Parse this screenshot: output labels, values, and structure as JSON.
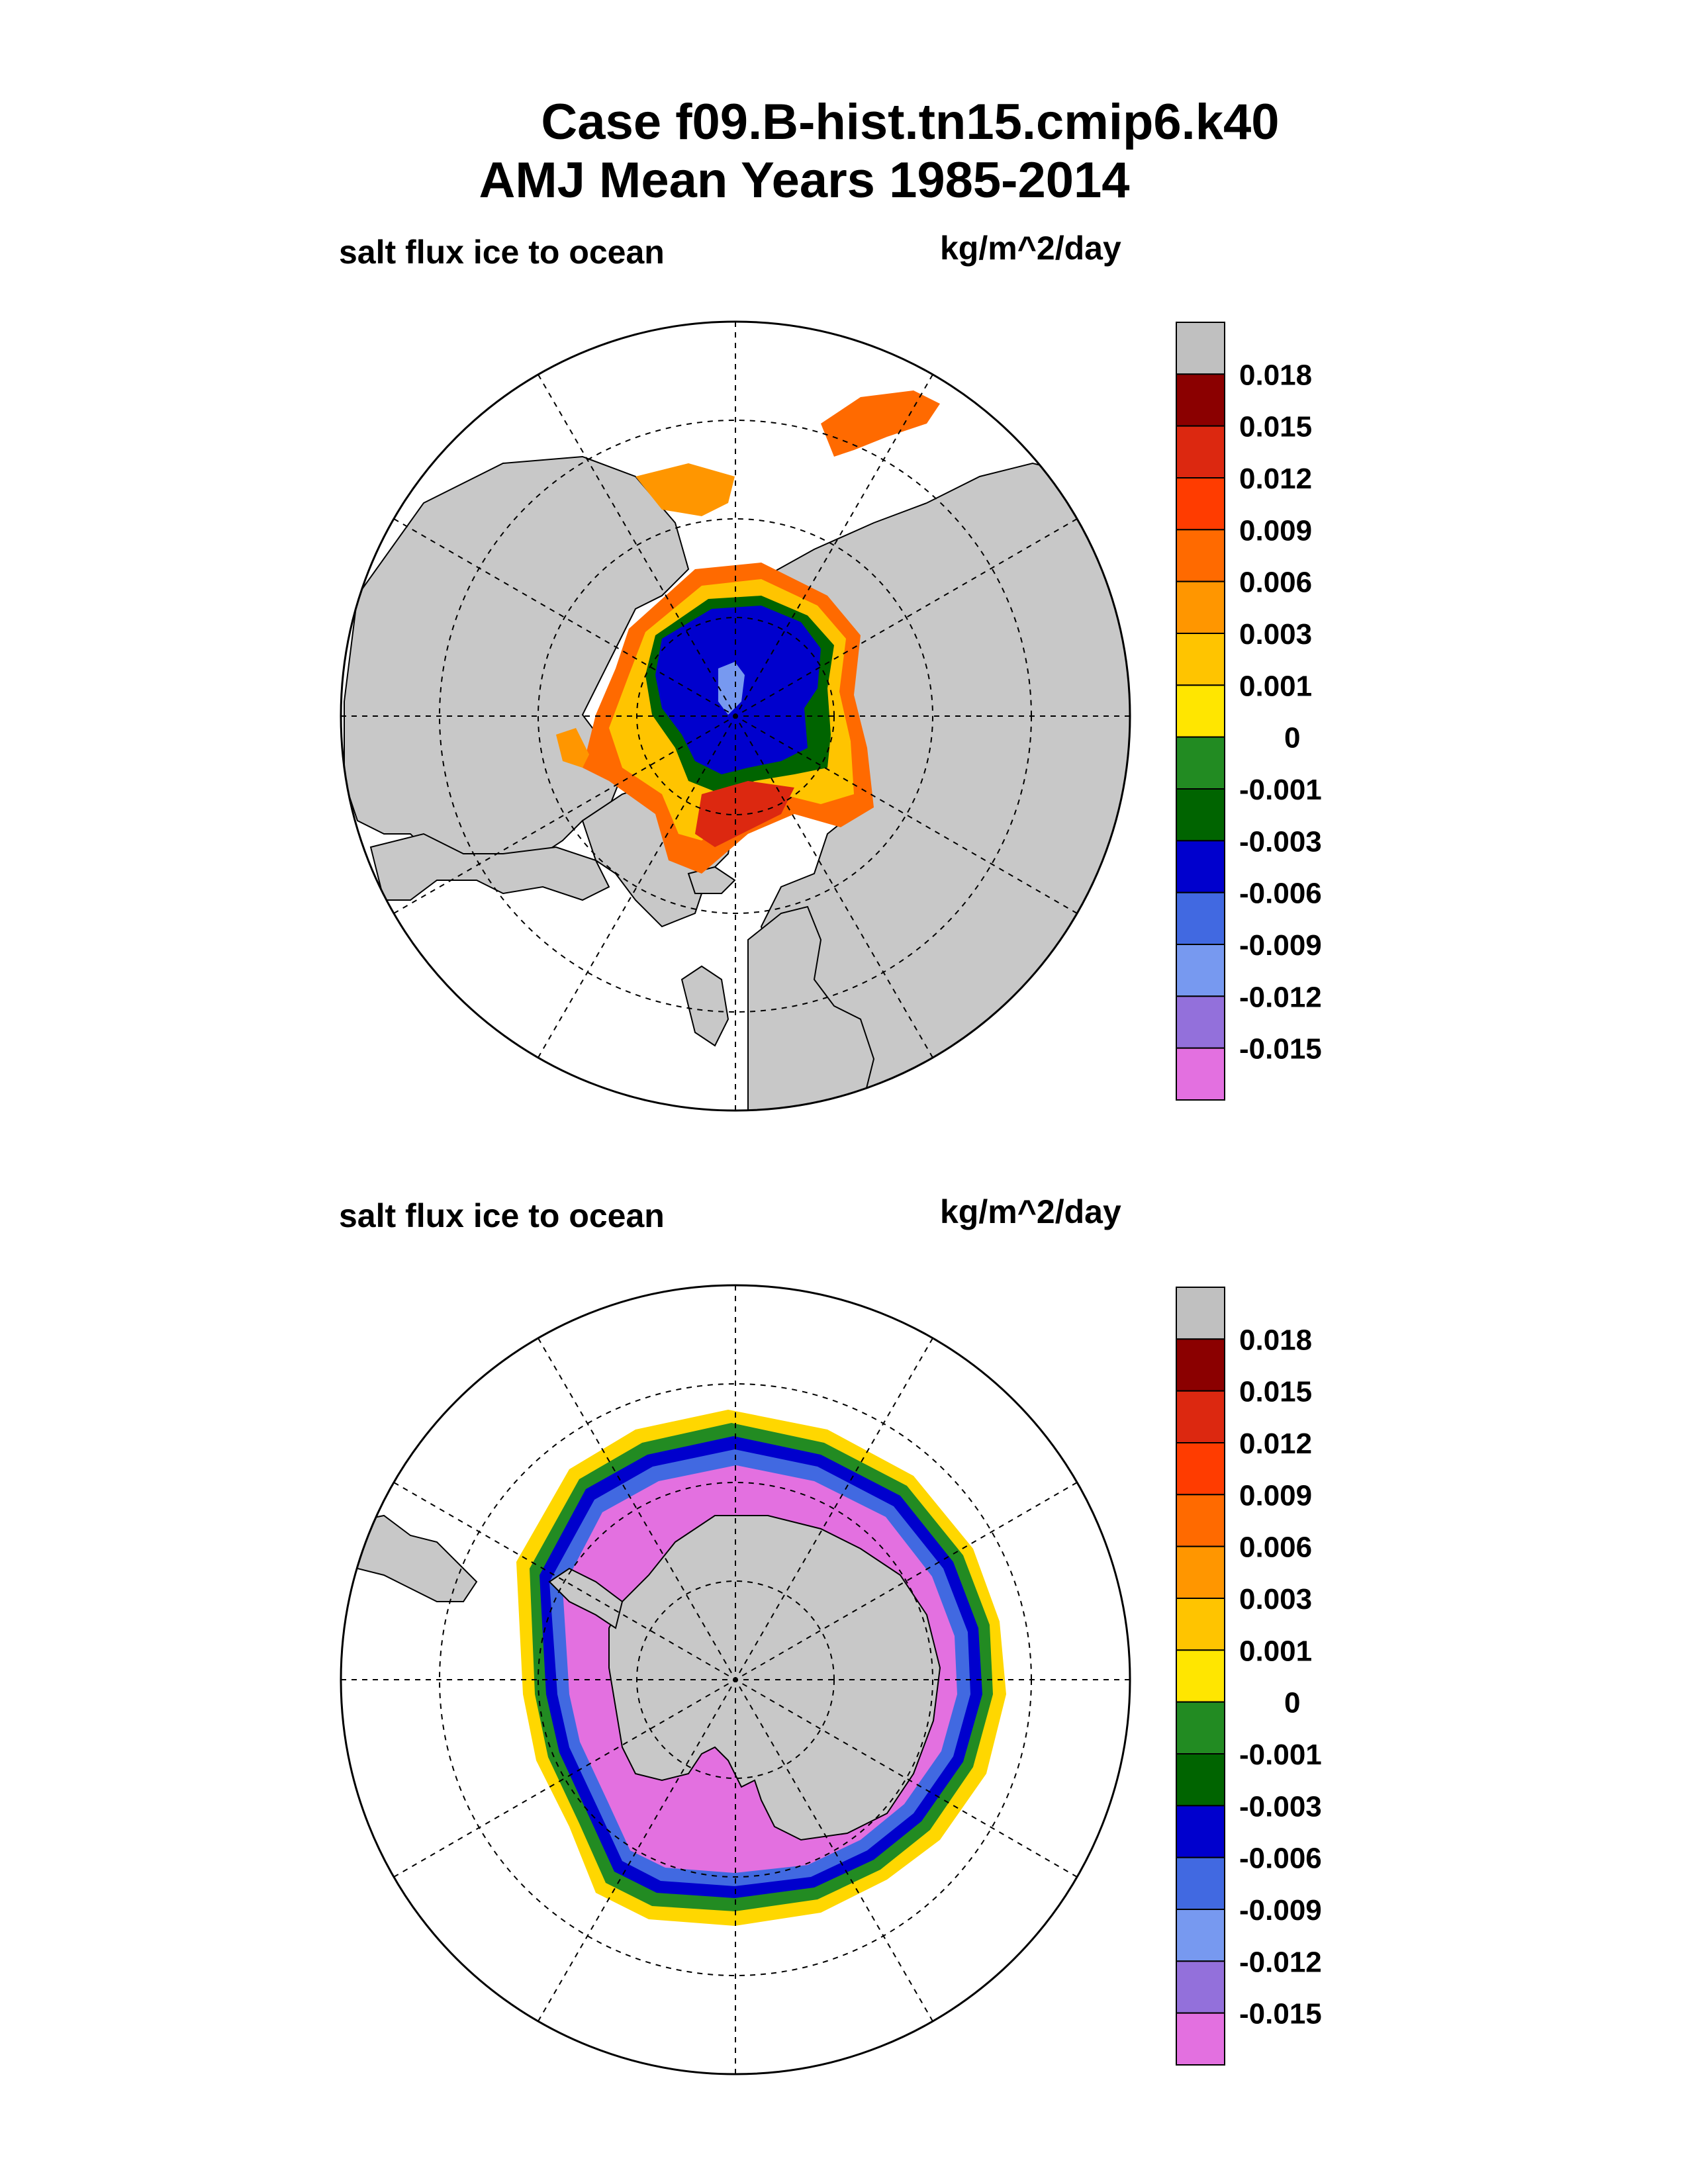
{
  "title": {
    "line1": "Case f09.B-hist.tn15.cmip6.k40",
    "line2": "AMJ Mean   Years 1985-2014"
  },
  "panels": [
    {
      "id": "north",
      "variable_label": "salt flux ice to ocean",
      "units_label": "kg/m^2/day"
    },
    {
      "id": "south",
      "variable_label": "salt flux ice to ocean",
      "units_label": "kg/m^2/day"
    }
  ],
  "colorbar": {
    "labels": [
      "0.018",
      "0.015",
      "0.012",
      "0.009",
      "0.006",
      "0.003",
      "0.001",
      "0",
      "-0.001",
      "-0.003",
      "-0.006",
      "-0.009",
      "-0.012",
      "-0.015"
    ],
    "colors_top_to_bottom": [
      "#c0c0c0",
      "#8b0000",
      "#dc2810",
      "#ff3c00",
      "#ff6a00",
      "#ff9600",
      "#ffc400",
      "#ffe600",
      "#228b22",
      "#006400",
      "#0000cd",
      "#4169e1",
      "#7799f0",
      "#9370db",
      "#e370e0"
    ]
  },
  "colors": {
    "land": "#c8c8c8",
    "ocean": "#ffffff",
    "outline": "#000000"
  }
}
